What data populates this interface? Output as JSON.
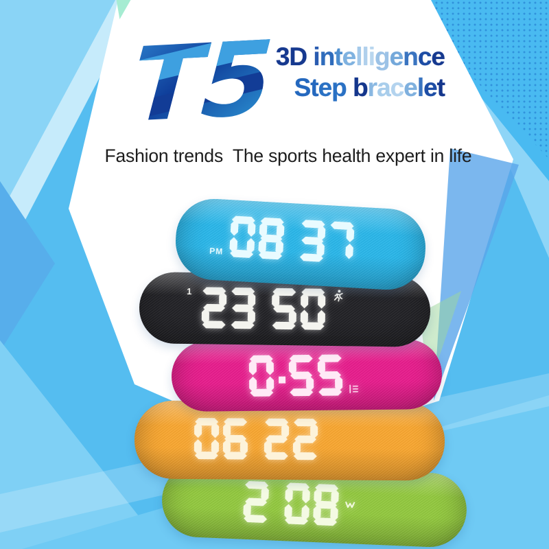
{
  "product": {
    "logo": "T5",
    "title_line1": {
      "text": "3D intelligence",
      "letter_colors": [
        "#16398f",
        "#16398f",
        "",
        "#2a5cb0",
        "#2f6cbc",
        "#4d8ecf",
        "#7fb2e0",
        "#a3c9ea",
        "#b0d0ec",
        "#b9d6ee",
        "#9cc2e6",
        "#74a8da",
        "#3a74c0",
        "#1d4da5",
        "#16398f"
      ]
    },
    "title_line2": {
      "text": "Step bracelet",
      "letter_colors": [
        "#2468be",
        "#2468be",
        "#2a71c4",
        "#2a71c4",
        "",
        "#14368c",
        "#8ab8e2",
        "#a8cdeb",
        "#b3d3ee",
        "#7fb0de",
        "#3a74c0",
        "#1d4da5",
        "#14368c"
      ]
    },
    "tagline": "Fashion trends  The sports health expert in life"
  },
  "bracelets": [
    {
      "id": "blue",
      "band_color": "#29b6e9",
      "display": "08 37",
      "digit_color": "#e9fbff",
      "left_bottom_label": "PM"
    },
    {
      "id": "black",
      "band_color": "#212125",
      "display": "23 50",
      "digit_color": "#f4f4ef",
      "left_top_label": "1",
      "right_icon": "runner"
    },
    {
      "id": "pink",
      "band_color": "#e71c8c",
      "display": "0·55",
      "digit_color": "#ffeaf6",
      "right_icon": "distance"
    },
    {
      "id": "orange",
      "band_color": "#f8a630",
      "display": "06 22",
      "digit_color": "#fdf3da"
    },
    {
      "id": "green",
      "band_color": "#92c83e",
      "display": "2 08",
      "digit_color": "#f4fae3",
      "right_icon": "steps-w"
    }
  ],
  "background": {
    "base": "#55bdf0",
    "white_gem": "#ffffff",
    "accent_dark_blue": "#5aa5ea",
    "accent_cyan": "#49baf1",
    "logo_blue_dark": "#0f3e9a",
    "logo_blue_light": "#2f9ad8"
  }
}
